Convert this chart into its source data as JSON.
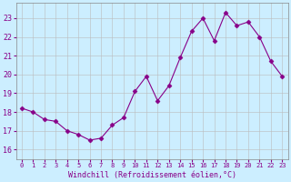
{
  "x": [
    0,
    1,
    2,
    3,
    4,
    5,
    6,
    7,
    8,
    9,
    10,
    11,
    12,
    13,
    14,
    15,
    16,
    17,
    18,
    19,
    20,
    21,
    22,
    23
  ],
  "y": [
    18.2,
    18.0,
    17.6,
    17.5,
    17.0,
    16.8,
    16.5,
    16.6,
    17.3,
    17.7,
    19.1,
    19.9,
    18.6,
    19.4,
    20.9,
    22.3,
    23.0,
    21.8,
    23.3,
    22.6,
    22.8,
    22.0,
    20.7,
    19.9
  ],
  "line_color": "#880088",
  "marker": "D",
  "marker_size": 2.5,
  "bg_color": "#cceeff",
  "grid_color": "#bbbbbb",
  "xlabel": "Windchill (Refroidissement éolien,°C)",
  "tick_color": "#880088",
  "ylabel_ticks": [
    16,
    17,
    18,
    19,
    20,
    21,
    22,
    23
  ],
  "xlim": [
    -0.5,
    23.5
  ],
  "ylim": [
    15.5,
    23.8
  ],
  "xtick_labels": [
    "0",
    "1",
    "2",
    "3",
    "4",
    "5",
    "6",
    "7",
    "8",
    "9",
    "10",
    "11",
    "12",
    "13",
    "14",
    "15",
    "16",
    "17",
    "18",
    "19",
    "20",
    "21",
    "22",
    "23"
  ]
}
